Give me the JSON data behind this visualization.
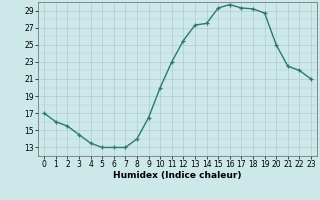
{
  "x": [
    0,
    1,
    2,
    3,
    4,
    5,
    6,
    7,
    8,
    9,
    10,
    11,
    12,
    13,
    14,
    15,
    16,
    17,
    18,
    19,
    20,
    21,
    22,
    23
  ],
  "y": [
    17,
    16,
    15.5,
    14.5,
    13.5,
    13,
    13,
    13,
    14,
    16.5,
    20,
    23,
    25.5,
    27.3,
    27.5,
    29.3,
    29.7,
    29.3,
    29.2,
    28.7,
    25,
    22.5,
    22,
    21
  ],
  "line_color": "#2d7a6a",
  "marker": "+",
  "marker_size": 3,
  "bg_color": "#cce8e8",
  "grid_color": "#b0cccc",
  "xlabel": "Humidex (Indice chaleur)",
  "ylim": [
    12,
    30
  ],
  "yticks": [
    13,
    15,
    17,
    19,
    21,
    23,
    25,
    27,
    29
  ],
  "xticks": [
    0,
    1,
    2,
    3,
    4,
    5,
    6,
    7,
    8,
    9,
    10,
    11,
    12,
    13,
    14,
    15,
    16,
    17,
    18,
    19,
    20,
    21,
    22,
    23
  ],
  "tick_fontsize": 5.5,
  "xlabel_fontsize": 6.5,
  "line_width": 1.0,
  "xlim": [
    -0.5,
    23.5
  ]
}
